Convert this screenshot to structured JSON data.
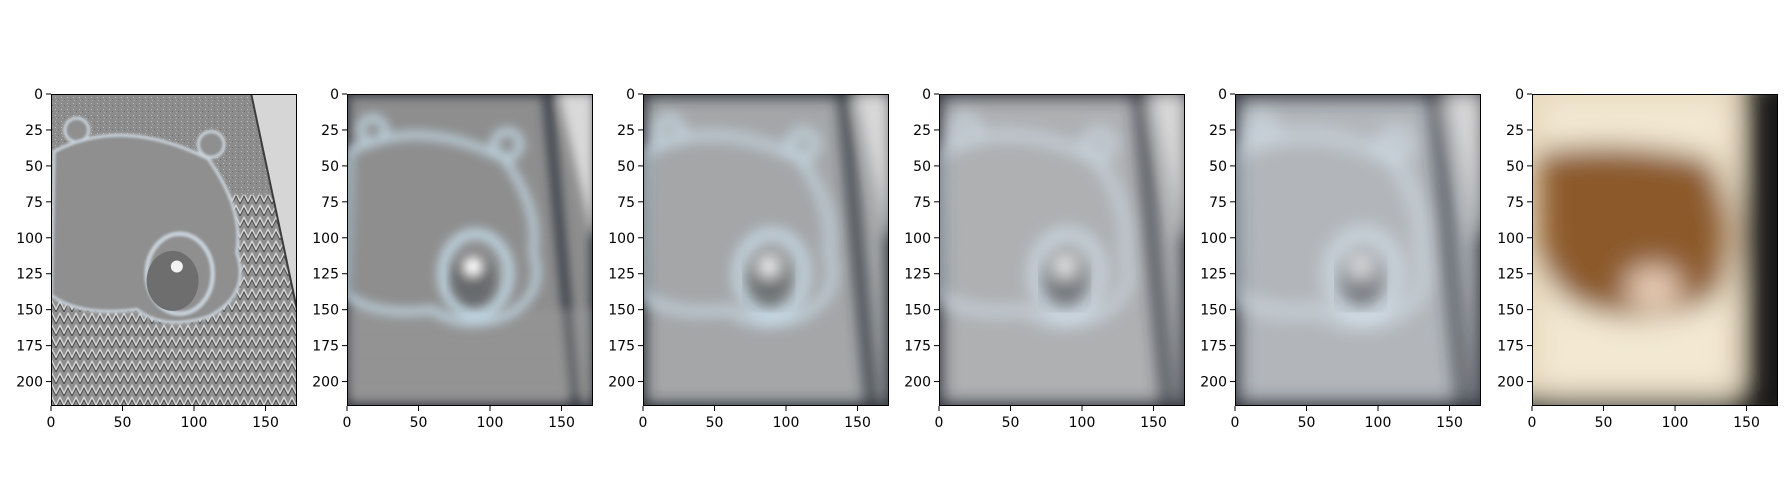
{
  "chart_data": [
    {
      "type": "image",
      "panel": 1,
      "title": "",
      "xlabel": "",
      "ylabel": "",
      "xlim": [
        0,
        172
      ],
      "ylim": [
        217,
        0
      ],
      "xticks": [
        0,
        50,
        100,
        150
      ],
      "yticks": [
        0,
        25,
        50,
        75,
        100,
        125,
        150,
        175,
        200
      ],
      "grid": false,
      "image_tone": "grayscale high-pass edge map of a teddy bear on a woven basket",
      "colors": {
        "base": "#8f8f8f",
        "light": "#c8c8c8",
        "dark": "#5a5a5a"
      }
    },
    {
      "type": "image",
      "panel": 2,
      "title": "",
      "xlabel": "",
      "ylabel": "",
      "xlim": [
        0,
        172
      ],
      "ylim": [
        217,
        0
      ],
      "xticks": [
        0,
        50,
        100,
        150
      ],
      "yticks": [
        0,
        25,
        50,
        75,
        100,
        125,
        150,
        175,
        200
      ],
      "grid": false,
      "image_tone": "blurred gray band-pass, bear outline with bright nose spot",
      "colors": {
        "base": "#8e8e8e",
        "light": "#bcd0dc",
        "dark": "#3a3f48"
      }
    },
    {
      "type": "image",
      "panel": 3,
      "title": "",
      "xlabel": "",
      "ylabel": "",
      "xlim": [
        0,
        172
      ],
      "ylim": [
        217,
        0
      ],
      "xticks": [
        0,
        50,
        100,
        150
      ],
      "yticks": [
        0,
        25,
        50,
        75,
        100,
        125,
        150,
        175,
        200
      ],
      "grid": false,
      "image_tone": "stronger blur band-pass, light gray with dark border",
      "colors": {
        "base": "#a4a6a8",
        "light": "#c8dbe7",
        "dark": "#2b3038"
      }
    },
    {
      "type": "image",
      "panel": 4,
      "title": "",
      "xlabel": "",
      "ylabel": "",
      "xlim": [
        0,
        172
      ],
      "ylim": [
        217,
        0
      ],
      "xticks": [
        0,
        50,
        100,
        150
      ],
      "yticks": [
        0,
        25,
        50,
        75,
        100,
        125,
        150,
        175,
        200
      ],
      "grid": false,
      "image_tone": "blurred band-pass, pale gray with faint blue outline",
      "colors": {
        "base": "#aeb0b2",
        "light": "#cfdde8",
        "dark": "#2d323a"
      }
    },
    {
      "type": "image",
      "panel": 5,
      "title": "",
      "xlabel": "",
      "ylabel": "",
      "xlim": [
        0,
        172
      ],
      "ylim": [
        217,
        0
      ],
      "xticks": [
        0,
        50,
        100,
        150
      ],
      "yticks": [
        0,
        25,
        50,
        75,
        100,
        125,
        150,
        175,
        200
      ],
      "grid": false,
      "image_tone": "coarse band-pass, pale blue-gray with dark frame",
      "colors": {
        "base": "#b2b6ba",
        "light": "#d6e4ee",
        "dark": "#2a2f38"
      }
    },
    {
      "type": "image",
      "panel": 6,
      "title": "",
      "xlabel": "",
      "ylabel": "",
      "xlim": [
        0,
        172
      ],
      "ylim": [
        217,
        0
      ],
      "xticks": [
        0,
        50,
        100,
        150
      ],
      "yticks": [
        0,
        25,
        50,
        75,
        100,
        125,
        150,
        175,
        200
      ],
      "grid": false,
      "image_tone": "low-pass residual, heavily blurred brown bear on beige",
      "colors": {
        "base": "#e6d8bd",
        "light": "#f3e9d3",
        "dark": "#6e4420",
        "brown": "#8c5a2c",
        "edge": "#121212"
      }
    }
  ]
}
